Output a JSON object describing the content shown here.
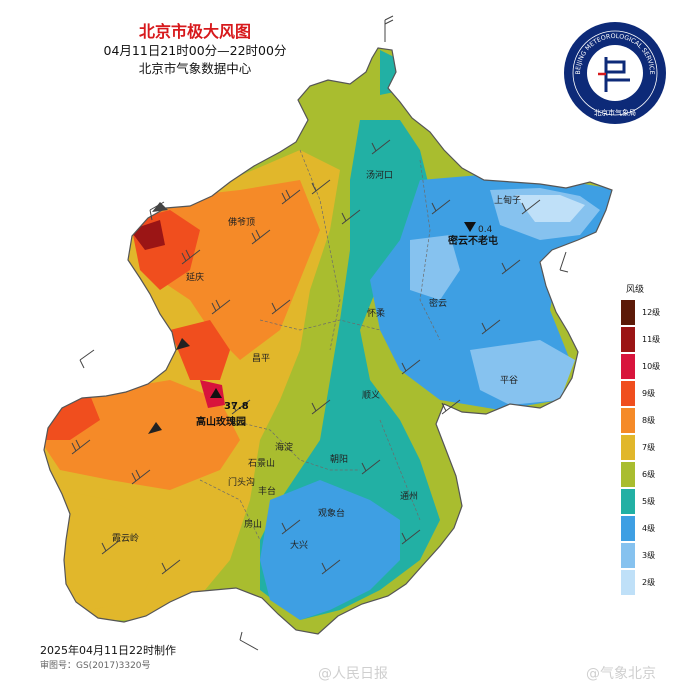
{
  "header": {
    "title": "北京市极大风图",
    "time_range": "04月11日21时00分—22时00分",
    "producer": "北京市气象数据中心"
  },
  "logo": {
    "ring_text": "BEIJING METEOROLOGICAL SERVICE",
    "cn_text": "北京市气象局"
  },
  "map": {
    "place_labels": [
      "汤河口",
      "上甸子",
      "密云不老屯",
      "佛爷顶",
      "延庆",
      "怀柔",
      "密云",
      "昌平",
      "平谷",
      "顺义",
      "高山玫瑰园",
      "海淀",
      "朝阳",
      "石景山",
      "门头沟",
      "丰台",
      "通州",
      "房山",
      "观象台",
      "大兴",
      "霞云岭"
    ],
    "max_wind_value": "37.8",
    "bulaotun_value": "0.4"
  },
  "legend": {
    "title": "风级",
    "levels": [
      {
        "label": "12级",
        "color": "#5c1a08"
      },
      {
        "label": "11级",
        "color": "#9b1515"
      },
      {
        "label": "10级",
        "color": "#d8143c"
      },
      {
        "label": "9级",
        "color": "#f04e1e"
      },
      {
        "label": "8级",
        "color": "#f58a28"
      },
      {
        "label": "7级",
        "color": "#e1b72b"
      },
      {
        "label": "6级",
        "color": "#a9bd2f"
      },
      {
        "label": "5级",
        "color": "#22b0a4"
      },
      {
        "label": "4级",
        "color": "#3e9fe3"
      },
      {
        "label": "3级",
        "color": "#86c2ef"
      },
      {
        "label": "2级",
        "color": "#bfe0f8"
      }
    ]
  },
  "footer": {
    "date": "2025年04月11日22时制作",
    "approval": "审图号：GS(2017)3320号"
  },
  "watermarks": [
    "@人民日报",
    "@气象北京"
  ]
}
